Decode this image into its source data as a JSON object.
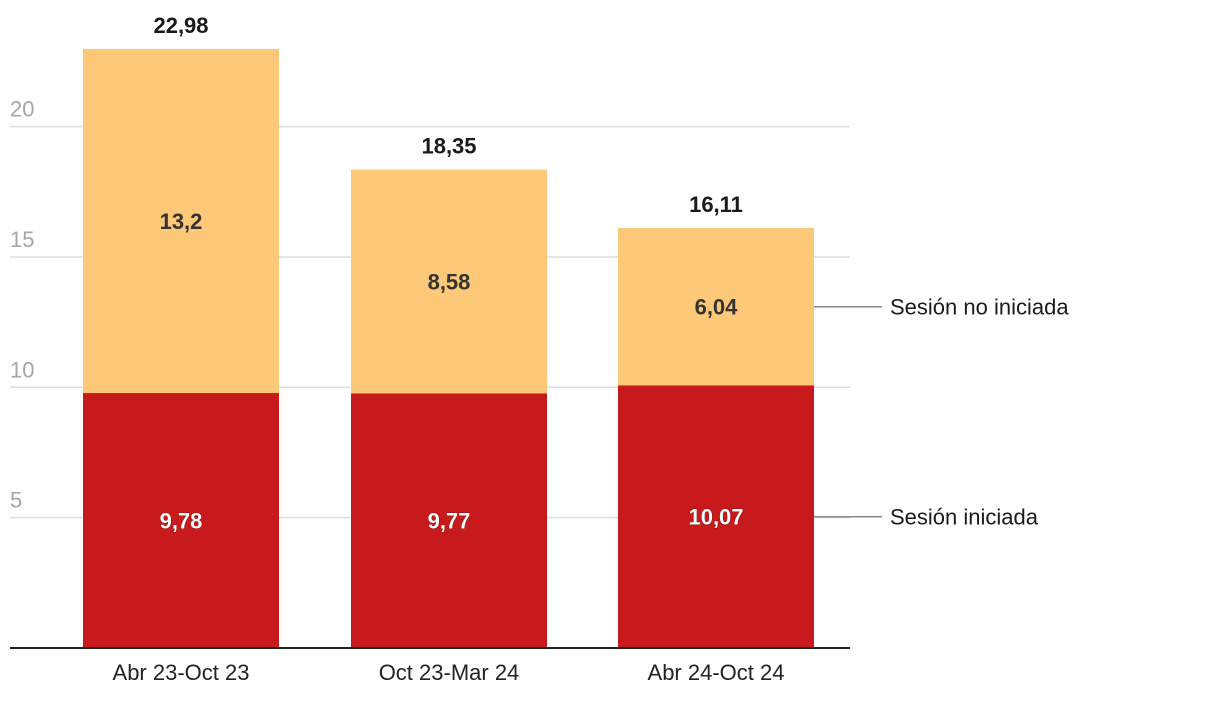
{
  "chart_data": {
    "type": "bar",
    "stacked": true,
    "title": "",
    "xlabel": "",
    "ylabel": "",
    "categories": [
      "Abr 23-Oct 23",
      "Oct 23-Mar 24",
      "Abr 24-Oct 24"
    ],
    "series": [
      {
        "name": "Sesión iniciada",
        "values": [
          9.78,
          9.77,
          10.07
        ],
        "value_labels": [
          "9,78",
          "9,77",
          "10,07"
        ],
        "color": "#c8191c"
      },
      {
        "name": "Sesión no iniciada",
        "values": [
          13.2,
          8.58,
          6.04
        ],
        "value_labels": [
          "13,2",
          "8,58",
          "6,04"
        ],
        "color": "#fdc979"
      }
    ],
    "totals": [
      22.98,
      18.35,
      16.11
    ],
    "total_labels": [
      "22,98",
      "18,35",
      "16,11"
    ],
    "ylim": [
      0,
      25
    ],
    "yticks": [
      5,
      10,
      15,
      20
    ],
    "ytick_labels": [
      "5",
      "10",
      "15",
      "20"
    ],
    "grid": true,
    "legend_position": "right"
  }
}
